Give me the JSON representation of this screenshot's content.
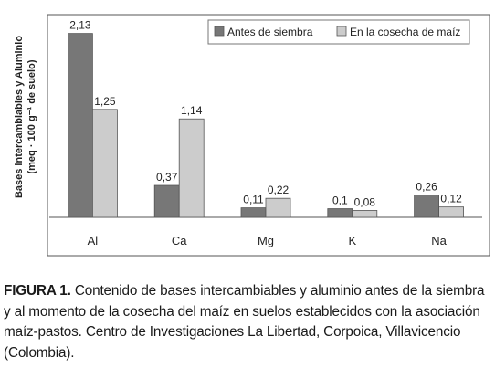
{
  "chart_data": {
    "type": "bar",
    "categories": [
      "Al",
      "Ca",
      "Mg",
      "K",
      "Na"
    ],
    "series": [
      {
        "name": "Antes de siembra",
        "values": [
          2.13,
          0.37,
          0.11,
          0.1,
          0.26
        ],
        "labels": [
          "2,13",
          "0,37",
          "0,11",
          "0,1",
          "0,26"
        ],
        "color": "#777777"
      },
      {
        "name": "En la cosecha de maíz",
        "values": [
          1.25,
          1.14,
          0.22,
          0.08,
          0.12
        ],
        "labels": [
          "1,25",
          "1,14",
          "0,22",
          "0,08",
          "0,12"
        ],
        "color": "#cccccc"
      }
    ],
    "ylabel_line1": "Bases intercambiables y Aluminio",
    "ylabel_line2": "(meq · 100 g⁻¹ de suelo)",
    "ylim": [
      0,
      2.2
    ],
    "grid": false,
    "legend": "top-right"
  },
  "caption": {
    "label": "FIGURA 1.",
    "text": " Contenido de bases intercambiables y aluminio antes de la siembra y al momento de la cosecha del maíz en suelos establecidos con la asociación maíz-pastos. Centro de Investigaciones La Libertad, Corpoica, Villavicencio (Colombia)."
  }
}
